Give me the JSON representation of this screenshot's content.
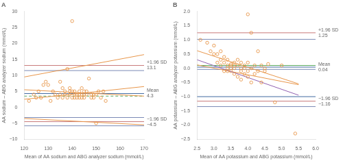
{
  "chart_data": [
    {
      "type": "scatter",
      "title": "A",
      "xlabel": "Mean of AA sodium and ABG analyzer sodium (mmol/L)",
      "ylabel": "AA sodium – ABG analyzer sodium (mmol/L)",
      "xlim": [
        120,
        170
      ],
      "ylim": [
        -10,
        30
      ],
      "xticks": [
        120,
        130,
        140,
        150,
        160,
        170
      ],
      "yticks": [
        {
          "value": -10,
          "label": "−10"
        },
        {
          "value": -5,
          "label": "−5"
        },
        0,
        5,
        10,
        15,
        20,
        25,
        30
      ],
      "grid": false,
      "series": [
        {
          "type": "scatter",
          "color": "#E8964A",
          "marker": "open_circle",
          "x": [
            122,
            124,
            125,
            126,
            127,
            128,
            129,
            130,
            131,
            132,
            133,
            134,
            135,
            135,
            136,
            136,
            137,
            137,
            138,
            138,
            139,
            139,
            139,
            140,
            140,
            140,
            141,
            141,
            141,
            142,
            142,
            143,
            143,
            143,
            144,
            144,
            144,
            145,
            145,
            145,
            146,
            146,
            147,
            148,
            148,
            149,
            149,
            150,
            150,
            151,
            152,
            153,
            154
          ],
          "values": [
            2,
            4,
            3,
            5,
            3,
            7,
            8,
            7,
            2,
            5,
            4,
            3,
            4,
            8,
            3,
            6,
            5,
            4,
            12,
            3,
            5,
            6,
            4,
            3,
            5,
            27,
            4,
            5,
            3,
            4,
            3,
            4,
            5,
            3,
            4,
            3,
            6,
            5,
            4,
            3,
            5,
            4,
            9,
            4,
            3,
            4,
            3,
            4,
            -5,
            5,
            3,
            5,
            2
          ]
        },
        {
          "type": "line",
          "color": "#E8964A",
          "x": [
            120,
            170
          ],
          "values": [
            2.5,
            6.5
          ]
        },
        {
          "type": "line",
          "color": "#E8964A",
          "x": [
            120,
            170
          ],
          "values": [
            5.5,
            3.5
          ]
        },
        {
          "type": "line",
          "color": "#E8964A",
          "x": [
            120,
            170
          ],
          "values": [
            9.5,
            16.5
          ]
        },
        {
          "type": "line",
          "color": "#E8964A",
          "x": [
            120,
            170
          ],
          "values": [
            -3.5,
            -5.5
          ]
        }
      ],
      "hlines": [
        {
          "y": 13.1,
          "color": "#c87878",
          "line_style": "solid"
        },
        {
          "y": 11.5,
          "color": "#7a8ab5",
          "line_style": "solid"
        },
        {
          "y": 4.3,
          "color": "#4169a0",
          "line_style": "solid"
        },
        {
          "y": 3.5,
          "color": "#5aaa60",
          "line_style": "dashed"
        },
        {
          "y": -3.2,
          "color": "#7a8ab5",
          "line_style": "solid"
        },
        {
          "y": -4.5,
          "color": "#c87878",
          "line_style": "solid"
        },
        {
          "y": -5.8,
          "color": "#7a8ab5",
          "line_style": "solid"
        }
      ],
      "annotations": [
        {
          "y": 13.1,
          "text": "+1.96 SD\n13.1"
        },
        {
          "y": 4.3,
          "text": "Mean\n4.3"
        },
        {
          "y": -4.5,
          "text": "−1.96 SD\n−4.5"
        }
      ]
    },
    {
      "type": "scatter",
      "title": "B",
      "xlabel": "Mean of AA potassium and ABG potassium (mmol/L)",
      "ylabel": "AA potassium – ABG analyzer potassium (mmol/L)",
      "xlim": [
        2.5,
        6.0
      ],
      "ylim": [
        -2.5,
        2.0
      ],
      "xticks": [
        2.5,
        {
          "value": 3.0,
          "label": "3.0"
        },
        3.5,
        {
          "value": 4.0,
          "label": "4.0"
        },
        4.5,
        {
          "value": 5.0,
          "label": "5.0"
        },
        5.5,
        {
          "value": 6.0,
          "label": "6.0"
        }
      ],
      "yticks": [
        {
          "value": -2.5,
          "label": "−2.5"
        },
        {
          "value": -2.0,
          "label": "−2.0"
        },
        {
          "value": -1.5,
          "label": "−1.5"
        },
        {
          "value": -1.0,
          "label": "−1.0"
        },
        {
          "value": -0.5,
          "label": "−0.5"
        },
        {
          "value": 0.0,
          "label": "0.0"
        },
        0.5,
        {
          "value": 1.0,
          "label": "1.0"
        },
        1.5,
        {
          "value": 2.0,
          "label": "2.0"
        }
      ],
      "grid": false,
      "series": [
        {
          "type": "scatter",
          "color": "#E8964A",
          "marker": "open_circle",
          "x": [
            2.6,
            2.8,
            2.9,
            3.0,
            3.0,
            3.1,
            3.1,
            3.2,
            3.2,
            3.2,
            3.3,
            3.3,
            3.3,
            3.4,
            3.4,
            3.4,
            3.4,
            3.5,
            3.5,
            3.5,
            3.5,
            3.6,
            3.6,
            3.6,
            3.6,
            3.7,
            3.7,
            3.7,
            3.8,
            3.8,
            3.8,
            3.8,
            3.9,
            3.9,
            3.9,
            4.0,
            4.0,
            4.0,
            4.0,
            4.1,
            4.1,
            4.1,
            4.2,
            4.2,
            4.3,
            4.3,
            4.4,
            4.4,
            4.5,
            4.5,
            4.6,
            4.8,
            5.0,
            5.4
          ],
          "values": [
            1.0,
            0.9,
            0.6,
            0.5,
            0.8,
            0.2,
            0.5,
            0.3,
            0.1,
            0.6,
            0.2,
            -0.1,
            0.4,
            0.1,
            0.3,
            -0.1,
            0.0,
            0.15,
            0.1,
            -0.1,
            0.0,
            0.2,
            -0.2,
            0.1,
            0.0,
            0.1,
            0.3,
            -0.3,
            0.0,
            -0.1,
            0.2,
            -0.4,
            0.1,
            -0.2,
            0.0,
            1.9,
            -0.1,
            0.2,
            -0.3,
            1.25,
            0.0,
            -0.5,
            0.1,
            -0.2,
            0.6,
            -0.1,
            0.1,
            -0.5,
            -0.1,
            0.0,
            0.15,
            -1.2,
            0.1,
            -2.3
          ]
        },
        {
          "type": "line",
          "color": "#E8964A",
          "x": [
            2.5,
            5.5
          ],
          "values": [
            0.62,
            -0.55
          ]
        },
        {
          "type": "line",
          "color": "#9060b0",
          "x": [
            2.5,
            5.5
          ],
          "values": [
            0.3,
            -0.95
          ]
        },
        {
          "type": "line",
          "color": "#E8964A",
          "x": [
            2.5,
            5.5
          ],
          "values": [
            0.12,
            -0.58
          ]
        }
      ],
      "hlines": [
        {
          "y": 1.25,
          "color": "#c87878",
          "line_style": "solid"
        },
        {
          "y": 1.02,
          "color": "#7a8ab5",
          "line_style": "solid"
        },
        {
          "y": 0.1,
          "color": "#5aaa60",
          "line_style": "solid"
        },
        {
          "y": 0.04,
          "color": "#4169a0",
          "line_style": "solid"
        },
        {
          "y": -0.04,
          "color": "#7a8ab5",
          "line_style": "solid"
        },
        {
          "y": -1.0,
          "color": "#4169a0",
          "line_style": "solid"
        },
        {
          "y": -1.16,
          "color": "#c87878",
          "line_style": "solid"
        },
        {
          "y": -1.35,
          "color": "#7a8ab5",
          "line_style": "solid"
        }
      ],
      "annotations": [
        {
          "y": 1.25,
          "text": "+1.96 SD\n1.25"
        },
        {
          "y": 0.04,
          "text": "Mean\n0.04"
        },
        {
          "y": -1.16,
          "text": "−1.96 SD\n−1.16"
        }
      ]
    }
  ]
}
